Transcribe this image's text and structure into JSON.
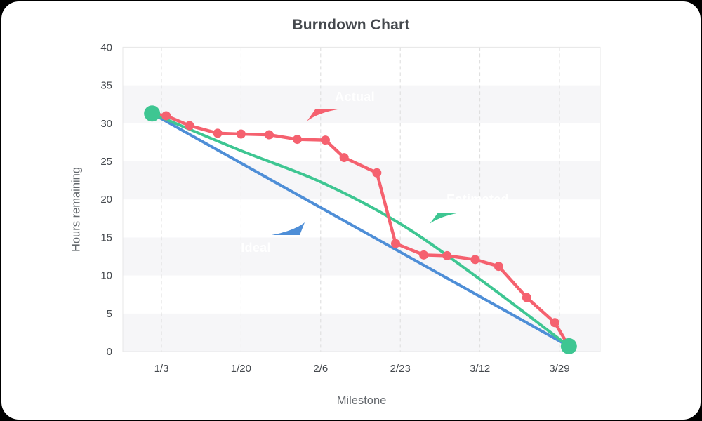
{
  "chart_data": {
    "type": "line",
    "title": "Burndown Chart",
    "xlabel": "Milestone",
    "ylabel": "Hours remaining",
    "ylim": [
      0,
      40
    ],
    "ytick_labels": [
      "0",
      "5",
      "10",
      "15",
      "20",
      "25",
      "30",
      "35",
      "40"
    ],
    "xtick_labels": [
      "1/3",
      "1/20",
      "2/6",
      "2/23",
      "3/12",
      "3/29"
    ],
    "grid": "vertical dashed gridlines at x ticks; horizontal alternating 5-unit shaded bands",
    "legend_position": "inline callout bubbles on chart",
    "series": [
      {
        "name": "Actual",
        "color": "#F5616F",
        "style": "polyline-with-dots",
        "points": [
          [
            "1/1",
            31.3
          ],
          [
            "1/4",
            31.0
          ],
          [
            "1/9",
            29.7
          ],
          [
            "1/15",
            28.7
          ],
          [
            "1/20",
            28.6
          ],
          [
            "1/26",
            28.5
          ],
          [
            "2/1",
            27.9
          ],
          [
            "2/7",
            27.8
          ],
          [
            "2/11",
            25.5
          ],
          [
            "2/18",
            23.5
          ],
          [
            "2/22",
            14.2
          ],
          [
            "2/28",
            12.7
          ],
          [
            "3/5",
            12.6
          ],
          [
            "3/11",
            12.1
          ],
          [
            "3/16",
            11.2
          ],
          [
            "3/22",
            7.1
          ],
          [
            "3/28",
            3.8
          ],
          [
            "3/31",
            0.7
          ]
        ]
      },
      {
        "name": "Estimated",
        "color": "#3EC692",
        "style": "smooth-curve",
        "points": [
          [
            "1/1",
            31.3
          ],
          [
            "1/20",
            26.4
          ],
          [
            "2/6",
            22.3
          ],
          [
            "2/23",
            16.8
          ],
          [
            "3/12",
            9.5
          ],
          [
            "3/31",
            0.7
          ]
        ]
      },
      {
        "name": "Ideal",
        "color": "#4E8ED7",
        "style": "straight-line",
        "points": [
          [
            "1/1",
            31.3
          ],
          [
            "3/31",
            0.7
          ]
        ]
      }
    ],
    "endpoint_markers": {
      "color": "#3EC692",
      "points": [
        [
          "1/1",
          31.3
        ],
        [
          "3/31",
          0.7
        ]
      ]
    },
    "colors": {
      "actual": "#F5616F",
      "estimated": "#3EC692",
      "ideal": "#4E8ED7",
      "band": "#F6F6F8",
      "grid": "#DCDCDC",
      "plot_border": "#E7E7E7",
      "tick_text": "#45494E",
      "axis_title_text": "#64686D",
      "title_text": "#45494E"
    }
  }
}
